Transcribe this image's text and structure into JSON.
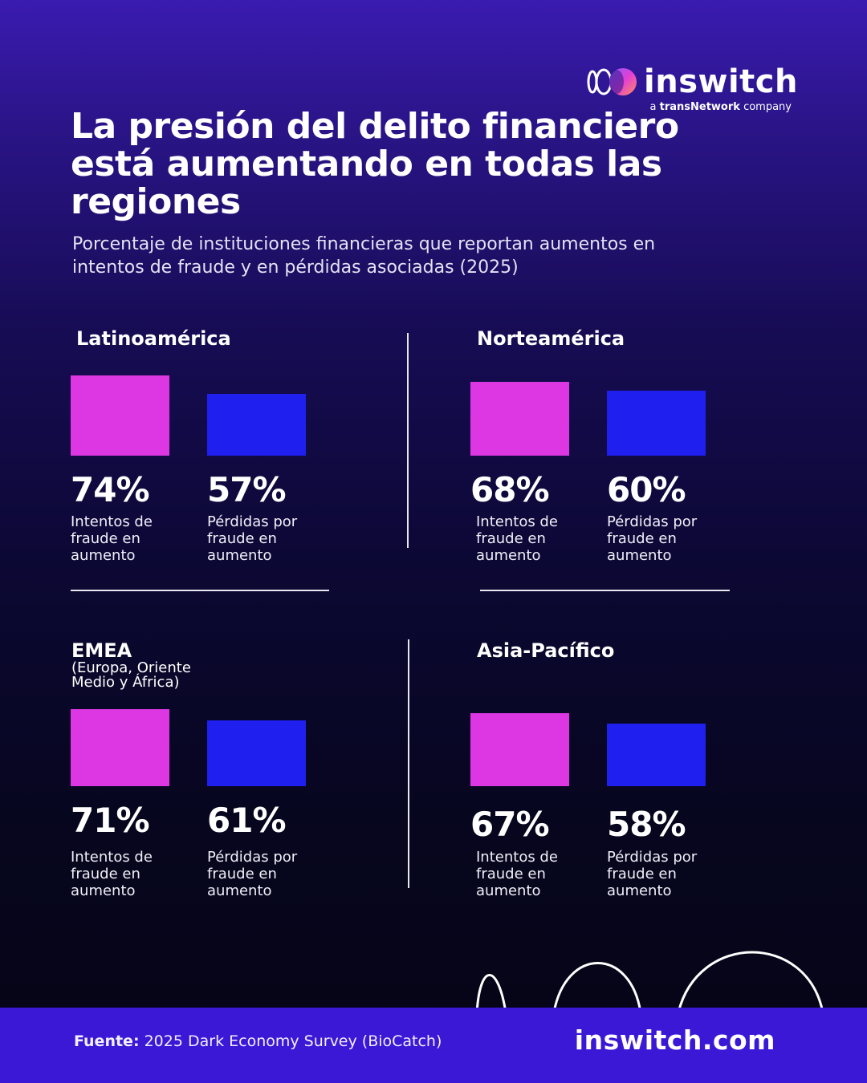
{
  "brand": {
    "name": "inswitch",
    "tagline_prefix": "a",
    "tagline_bold": "transNetwork",
    "tagline_suffix": "company",
    "logo_icon": "overlapping-rings-icon"
  },
  "title": "La presión del delito financiero está aumentando en todas las regiones",
  "subtitle": "Porcentaje de instituciones financieras que reportan aumentos en intentos de fraude y en pérdidas asociadas (2025)",
  "footer": {
    "source_label": "Fuente:",
    "source_text": "2025 Dark Economy Survey (BioCatch)",
    "website": "inswitch.com"
  },
  "colors": {
    "background_top": "#3a1bb0",
    "background_bottom": "#050415",
    "attempts": "#dd37e4",
    "losses": "#1f1ff0",
    "footer": "#3b17d6"
  },
  "chart_data": [
    {
      "type": "bar",
      "region": "Latinoamérica",
      "region_sub": "",
      "categories": [
        "Intentos de fraude en aumento",
        "Pérdidas por fraude en aumento"
      ],
      "values": [
        74,
        57
      ],
      "value_labels": [
        "74%",
        "57%"
      ],
      "unit": "%"
    },
    {
      "type": "bar",
      "region": "Norteamérica",
      "region_sub": "",
      "categories": [
        "Intentos de fraude en aumento",
        "Pérdidas por fraude en aumento"
      ],
      "values": [
        68,
        60
      ],
      "value_labels": [
        "68%",
        "60%"
      ],
      "unit": "%"
    },
    {
      "type": "bar",
      "region": "EMEA",
      "region_sub": "(Europa, Oriente Medio y África)",
      "categories": [
        "Intentos de fraude en aumento",
        "Pérdidas por fraude en aumento"
      ],
      "values": [
        71,
        61
      ],
      "value_labels": [
        "71%",
        "61%"
      ],
      "unit": "%"
    },
    {
      "type": "bar",
      "region": "Asia-Pacífico",
      "region_sub": "",
      "categories": [
        "Intentos de fraude en aumento",
        "Pérdidas por fraude en aumento"
      ],
      "values": [
        67,
        58
      ],
      "value_labels": [
        "67%",
        "58%"
      ],
      "unit": "%"
    }
  ]
}
